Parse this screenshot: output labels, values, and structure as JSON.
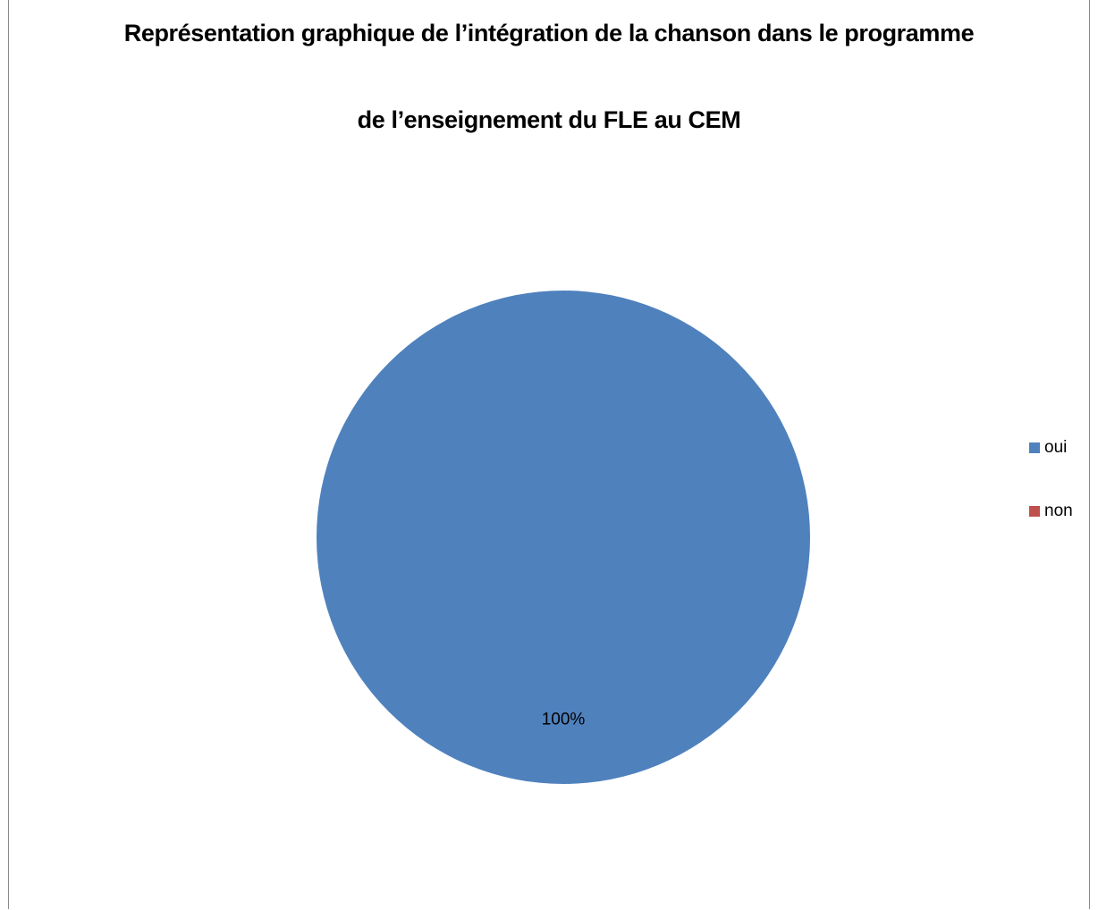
{
  "chart_data": {
    "type": "pie",
    "title_lines": [
      "Représentation graphique de l’intégration de la chanson dans le programme",
      "de l’enseignement du FLE au CEM"
    ],
    "categories": [
      "oui",
      "non"
    ],
    "values": [
      100,
      0
    ],
    "data_labels": [
      "100%",
      ""
    ],
    "colors": [
      "#4f81bd",
      "#c0504d"
    ],
    "legend": [
      {
        "label": "oui",
        "color": "#4f81bd"
      },
      {
        "label": "non",
        "color": "#c0504d"
      }
    ],
    "legend_position": "right"
  }
}
